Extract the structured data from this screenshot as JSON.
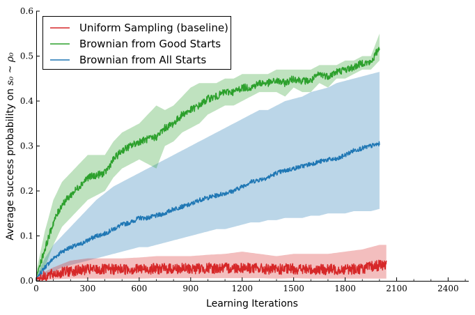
{
  "chart_data": {
    "type": "line",
    "xlabel": "Learning Iterations",
    "ylabel_prefix": "Average success probability on ",
    "ylabel_math": "s₀ ~ ρ₀",
    "xlim": [
      0,
      2520
    ],
    "ylim": [
      0,
      0.6
    ],
    "x_ticks": [
      0,
      300,
      600,
      900,
      1200,
      1500,
      1800,
      2100,
      2400
    ],
    "y_ticks": [
      0.0,
      0.1,
      0.2,
      0.3,
      0.4,
      0.5,
      0.6
    ],
    "x_tick_labels": [
      "0",
      "300",
      "600",
      "900",
      "1200",
      "1500",
      "1800",
      "2100",
      "2400"
    ],
    "y_tick_labels": [
      "0.0",
      "0.1",
      "0.2",
      "0.3",
      "0.4",
      "0.5",
      "0.6"
    ],
    "grid": false,
    "legend_position": "top-left",
    "series": [
      {
        "name": "Uniform Sampling (baseline)",
        "color": "#d62728",
        "x": [
          0,
          100,
          200,
          300,
          400,
          500,
          600,
          700,
          800,
          900,
          1000,
          1100,
          1200,
          1300,
          1400,
          1500,
          1600,
          1700,
          1800,
          1900,
          2000,
          2040
        ],
        "mean": [
          0.005,
          0.015,
          0.022,
          0.025,
          0.025,
          0.026,
          0.026,
          0.027,
          0.027,
          0.027,
          0.028,
          0.028,
          0.03,
          0.027,
          0.025,
          0.027,
          0.025,
          0.025,
          0.026,
          0.027,
          0.035,
          0.035
        ],
        "band_low": [
          0.0,
          0.003,
          0.005,
          0.005,
          0.005,
          0.005,
          0.005,
          0.006,
          0.006,
          0.006,
          0.006,
          0.006,
          0.006,
          0.006,
          0.005,
          0.006,
          0.005,
          0.005,
          0.005,
          0.005,
          0.005,
          0.005
        ],
        "band_high": [
          0.01,
          0.03,
          0.045,
          0.05,
          0.05,
          0.05,
          0.052,
          0.055,
          0.055,
          0.055,
          0.058,
          0.06,
          0.065,
          0.06,
          0.055,
          0.06,
          0.06,
          0.06,
          0.065,
          0.07,
          0.08,
          0.08
        ]
      },
      {
        "name": "Brownian from Good Starts",
        "color": "#2ca02c",
        "x": [
          0,
          50,
          100,
          150,
          200,
          250,
          300,
          350,
          400,
          450,
          500,
          550,
          600,
          650,
          700,
          750,
          800,
          850,
          900,
          950,
          1000,
          1050,
          1100,
          1150,
          1200,
          1250,
          1300,
          1350,
          1400,
          1450,
          1500,
          1550,
          1600,
          1650,
          1700,
          1750,
          1800,
          1850,
          1900,
          1950,
          2000
        ],
        "mean": [
          0.01,
          0.07,
          0.13,
          0.17,
          0.19,
          0.21,
          0.23,
          0.235,
          0.24,
          0.27,
          0.29,
          0.3,
          0.31,
          0.315,
          0.32,
          0.34,
          0.35,
          0.37,
          0.38,
          0.39,
          0.405,
          0.41,
          0.42,
          0.42,
          0.43,
          0.43,
          0.44,
          0.44,
          0.445,
          0.44,
          0.45,
          0.445,
          0.445,
          0.46,
          0.455,
          0.465,
          0.47,
          0.475,
          0.485,
          0.485,
          0.52
        ],
        "band_low": [
          0.005,
          0.03,
          0.08,
          0.12,
          0.14,
          0.16,
          0.18,
          0.19,
          0.2,
          0.23,
          0.25,
          0.26,
          0.27,
          0.26,
          0.25,
          0.3,
          0.31,
          0.33,
          0.34,
          0.35,
          0.37,
          0.38,
          0.39,
          0.39,
          0.4,
          0.41,
          0.42,
          0.42,
          0.42,
          0.41,
          0.43,
          0.42,
          0.42,
          0.44,
          0.43,
          0.45,
          0.45,
          0.46,
          0.47,
          0.47,
          0.49
        ],
        "band_high": [
          0.02,
          0.11,
          0.18,
          0.22,
          0.24,
          0.26,
          0.28,
          0.28,
          0.28,
          0.31,
          0.33,
          0.34,
          0.35,
          0.37,
          0.39,
          0.38,
          0.39,
          0.41,
          0.43,
          0.44,
          0.44,
          0.44,
          0.45,
          0.45,
          0.46,
          0.46,
          0.46,
          0.46,
          0.47,
          0.47,
          0.47,
          0.47,
          0.47,
          0.48,
          0.48,
          0.48,
          0.49,
          0.49,
          0.5,
          0.5,
          0.55
        ]
      },
      {
        "name": "Brownian from All Starts",
        "color": "#1f77b4",
        "x": [
          0,
          50,
          100,
          150,
          200,
          250,
          300,
          350,
          400,
          450,
          500,
          550,
          600,
          650,
          700,
          750,
          800,
          850,
          900,
          950,
          1000,
          1050,
          1100,
          1150,
          1200,
          1250,
          1300,
          1350,
          1400,
          1450,
          1500,
          1550,
          1600,
          1650,
          1700,
          1750,
          1800,
          1850,
          1900,
          1950,
          2000
        ],
        "mean": [
          0.005,
          0.03,
          0.05,
          0.065,
          0.075,
          0.08,
          0.09,
          0.1,
          0.105,
          0.115,
          0.125,
          0.13,
          0.14,
          0.14,
          0.145,
          0.15,
          0.16,
          0.165,
          0.17,
          0.18,
          0.185,
          0.19,
          0.195,
          0.2,
          0.21,
          0.22,
          0.225,
          0.23,
          0.24,
          0.245,
          0.25,
          0.255,
          0.26,
          0.265,
          0.27,
          0.27,
          0.28,
          0.29,
          0.295,
          0.3,
          0.305
        ],
        "band_low": [
          0.0,
          0.01,
          0.02,
          0.03,
          0.035,
          0.04,
          0.045,
          0.05,
          0.055,
          0.06,
          0.065,
          0.07,
          0.075,
          0.075,
          0.08,
          0.085,
          0.09,
          0.095,
          0.1,
          0.105,
          0.11,
          0.115,
          0.115,
          0.12,
          0.125,
          0.13,
          0.13,
          0.135,
          0.135,
          0.14,
          0.14,
          0.14,
          0.145,
          0.145,
          0.15,
          0.15,
          0.15,
          0.155,
          0.155,
          0.155,
          0.16
        ],
        "band_high": [
          0.01,
          0.05,
          0.08,
          0.1,
          0.12,
          0.14,
          0.16,
          0.18,
          0.195,
          0.21,
          0.22,
          0.23,
          0.24,
          0.25,
          0.26,
          0.27,
          0.28,
          0.29,
          0.3,
          0.31,
          0.32,
          0.33,
          0.34,
          0.35,
          0.36,
          0.37,
          0.38,
          0.38,
          0.39,
          0.4,
          0.405,
          0.41,
          0.42,
          0.425,
          0.43,
          0.44,
          0.445,
          0.45,
          0.455,
          0.46,
          0.465
        ]
      }
    ]
  }
}
